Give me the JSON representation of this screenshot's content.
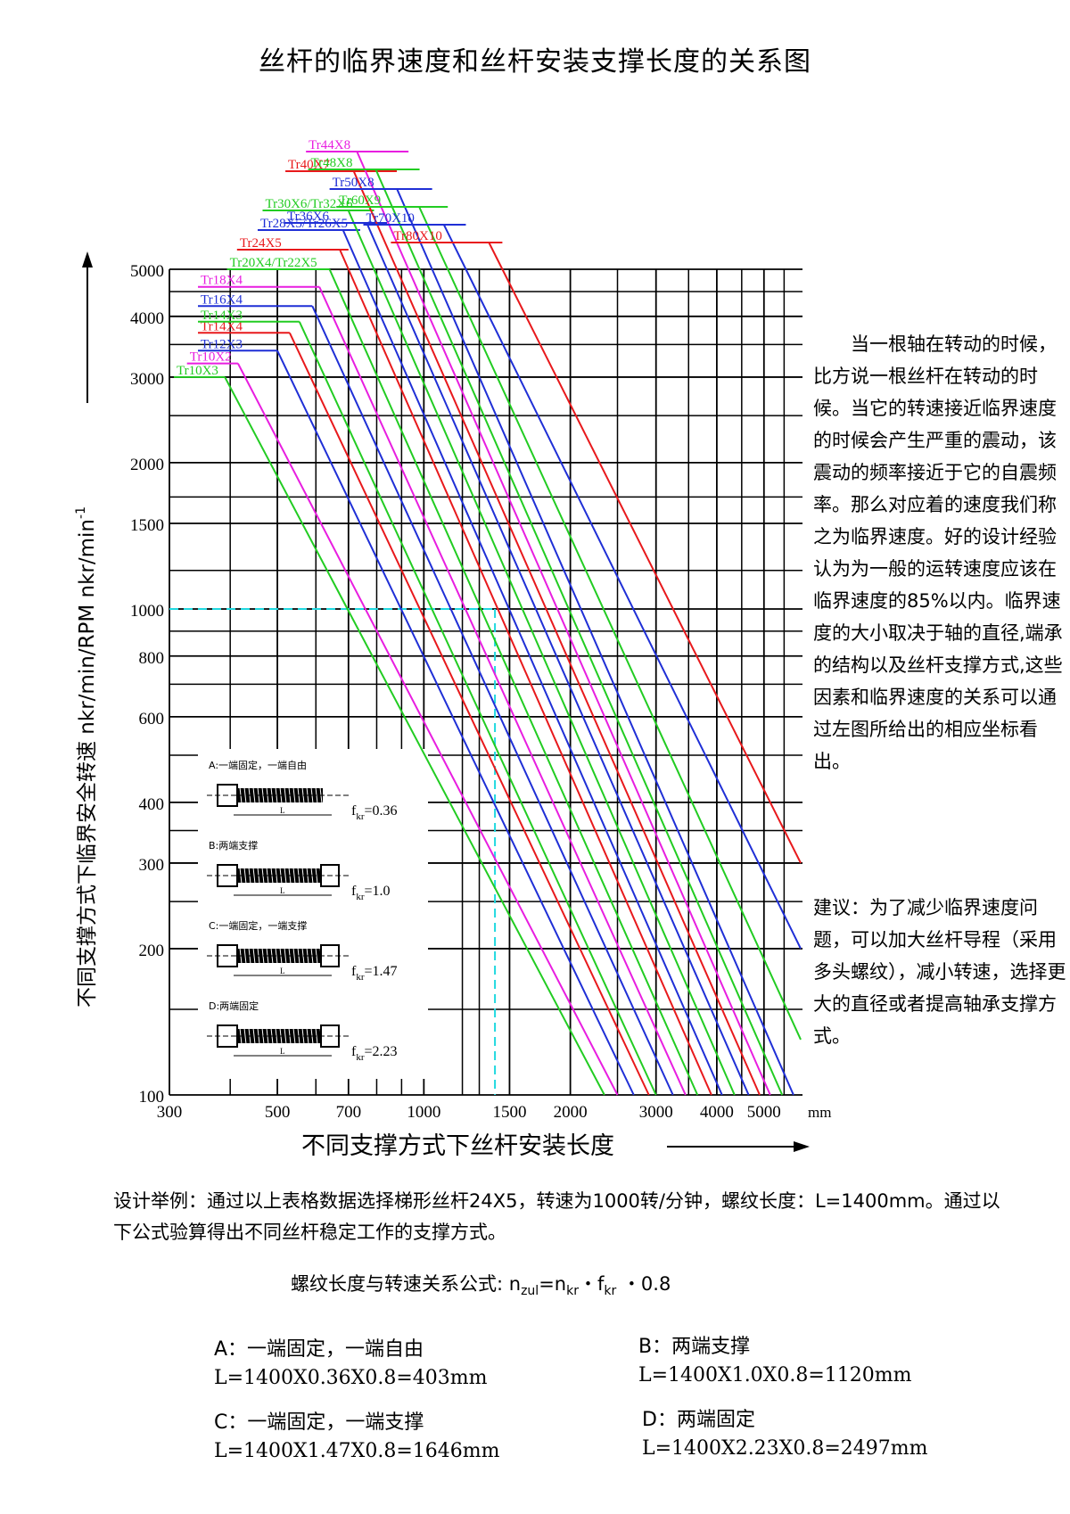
{
  "title": "丝杆的临界速度和丝杆安装支撑长度的关系图",
  "side_text": "　　当一根轴在转动的时候，比方说一根丝杆在转动的时候。当它的转速接近临界速度的时候会产生严重的震动，该震动的频率接近于它的自震频率。那么对应着的速度我们称之为临界速度。好的设计经验认为为一般的运转速度应该在临界速度的85%以内。临界速度的大小取决于轴的直径,端承的结构以及丝杆支撑方式,这些因素和临界速度的关系可以通过左图所给出的相应坐标看出。",
  "advice": "建议：为了减少临界速度问题，可以加大丝杆导程（采用多头螺纹），减小转速，选择更大的直径或者提高轴承支撑方式。",
  "example": "设计举例：通过以上表格数据选择梯形丝杆24X5，转速为1000转/分钟，螺纹长度：L=1400mm。通过以下公式验算得出不同丝杆稳定工作的支撑方式。",
  "formula": {
    "prefix": "螺纹长度与转速关系公式: ",
    "n": "n",
    "zul": "zul",
    "eq": "=n",
    "kr1": "kr",
    "dot": "・f",
    "kr2": "kr",
    "tail": " ・0.8"
  },
  "results": {
    "a": {
      "title": "A：一端固定，一端自由",
      "calc": "L=1400X0.36X0.8=403mm"
    },
    "b": {
      "title": "B：两端支撑",
      "calc": "L=1400X1.0X0.8=1120mm"
    },
    "c": {
      "title": "C：一端固定，一端支撑",
      "calc": "L=1400X1.47X0.8=1646mm"
    },
    "d": {
      "title": "D：两端固定",
      "calc": "L=1400X2.23X0.8=2497mm"
    }
  },
  "colors": {
    "red": "#e8191c",
    "blue": "#1f2fd6",
    "green": "#22cc22",
    "magenta": "#e81ee0",
    "cyan": "#20d8e0"
  },
  "chart_data": {
    "type": "line",
    "log_x": true,
    "log_y": true,
    "xlabel": "不同支撑方式下丝杆安装长度",
    "ylabel": "不同支撑方式下临界安全转速  nkr/min/RPM nkr/min",
    "ylabel_sup": "-1",
    "x_unit": "mm",
    "xlim": [
      300,
      6000
    ],
    "ylim": [
      100,
      5000
    ],
    "x_ticks": [
      300,
      500,
      700,
      1000,
      1500,
      2000,
      3000,
      4000,
      5000
    ],
    "y_ticks": [
      100,
      200,
      300,
      400,
      600,
      800,
      1000,
      1500,
      2000,
      3000,
      4000,
      5000
    ],
    "example_point": {
      "x": 1400,
      "y": 1000
    },
    "series": [
      {
        "name": "Tr10X3",
        "color": "green",
        "x": [
          390,
          2350
        ],
        "y": [
          3000,
          100
        ]
      },
      {
        "name": "Tr10X2",
        "color": "magenta",
        "x": [
          415,
          2500
        ],
        "y": [
          3200,
          100
        ]
      },
      {
        "name": "Tr12X3",
        "color": "blue",
        "x": [
          500,
          2700
        ],
        "y": [
          3400,
          100
        ]
      },
      {
        "name": "Tr14X4",
        "color": "red",
        "x": [
          530,
          2900
        ],
        "y": [
          3700,
          100
        ]
      },
      {
        "name": "Tr14X3",
        "color": "green",
        "x": [
          555,
          3000
        ],
        "y": [
          3900,
          100
        ]
      },
      {
        "name": "Tr16X4",
        "color": "blue",
        "x": [
          590,
          3250
        ],
        "y": [
          4200,
          100
        ]
      },
      {
        "name": "Tr18X4",
        "color": "magenta",
        "x": [
          610,
          3450
        ],
        "y": [
          4600,
          100
        ]
      },
      {
        "name": "Tr20X4/Tr22X5",
        "color": "green",
        "x": [
          640,
          3650
        ],
        "y": [
          5000,
          100
        ]
      },
      {
        "name": "Tr24X5",
        "color": "red",
        "x": [
          700,
          3900
        ],
        "y": [
          5000,
          100
        ]
      },
      {
        "name": "Tr28X5/Tr26X5",
        "color": "blue",
        "x": [
          740,
          4100
        ],
        "y": [
          5000,
          100
        ]
      },
      {
        "name": "Tr30X6/Tr32X6",
        "color": "green",
        "x": [
          790,
          4350
        ],
        "y": [
          5000,
          100
        ]
      },
      {
        "name": "Tr36X6",
        "color": "blue",
        "x": [
          840,
          4650
        ],
        "y": [
          5000,
          100
        ]
      },
      {
        "name": "Tr40X7",
        "color": "red",
        "x": [
          880,
          4900
        ],
        "y": [
          5000,
          100
        ]
      },
      {
        "name": "Tr44X8",
        "color": "magenta",
        "x": [
          930,
          5150
        ],
        "y": [
          5000,
          100
        ]
      },
      {
        "name": "Tr48X8",
        "color": "green",
        "x": [
          980,
          5450
        ],
        "y": [
          5000,
          100
        ]
      },
      {
        "name": "Tr50X8",
        "color": "blue",
        "x": [
          1040,
          5750
        ],
        "y": [
          5000,
          100
        ]
      },
      {
        "name": "Tr60X9",
        "color": "green",
        "x": [
          1120,
          5950
        ],
        "y": [
          5000,
          130
        ]
      },
      {
        "name": "Tr70X10",
        "color": "blue",
        "x": [
          1220,
          5950
        ],
        "y": [
          5000,
          200
        ]
      },
      {
        "name": "Tr80X10",
        "color": "red",
        "x": [
          1450,
          5950
        ],
        "y": [
          5000,
          300
        ]
      }
    ],
    "inset": [
      {
        "label": "A:一端固定，一端自由",
        "f": "f",
        "sub": "kr",
        "val": "=0.36"
      },
      {
        "label": "B:两端支撑",
        "f": "f",
        "sub": "kr",
        "val": "=1.0"
      },
      {
        "label": "C:一端固定，一端支撑",
        "f": "f",
        "sub": "kr",
        "val": "=1.47"
      },
      {
        "label": "D:两端固定",
        "f": "f",
        "sub": "kr",
        "val": "=2.23"
      }
    ],
    "inset_dim": "L"
  }
}
